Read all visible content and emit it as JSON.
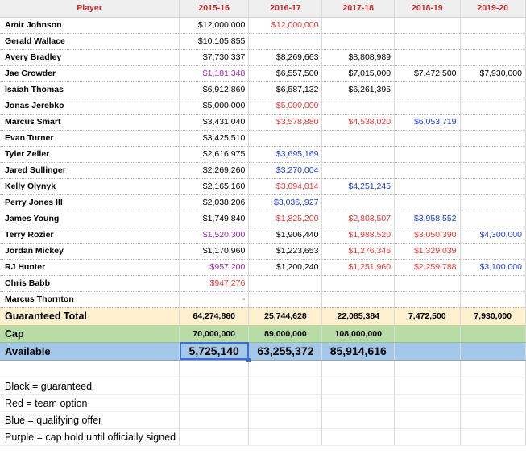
{
  "headers": [
    "Player",
    "2015-16",
    "2016-17",
    "2017-18",
    "2018-19",
    "2019-20"
  ],
  "players": [
    {
      "name": "Amir Johnson",
      "cells": [
        {
          "v": "$12,000,000",
          "c": "black"
        },
        {
          "v": "$12,000,000",
          "c": "red"
        },
        {
          "v": "",
          "c": "black"
        },
        {
          "v": "",
          "c": "black"
        },
        {
          "v": "",
          "c": "black"
        }
      ]
    },
    {
      "name": "Gerald Wallace",
      "cells": [
        {
          "v": "$10,105,855",
          "c": "black"
        },
        {
          "v": "",
          "c": "black"
        },
        {
          "v": "",
          "c": "black"
        },
        {
          "v": "",
          "c": "black"
        },
        {
          "v": "",
          "c": "black"
        }
      ]
    },
    {
      "name": "Avery Bradley",
      "cells": [
        {
          "v": "$7,730,337",
          "c": "black"
        },
        {
          "v": "$8,269,663",
          "c": "black"
        },
        {
          "v": "$8,808,989",
          "c": "black"
        },
        {
          "v": "",
          "c": "black"
        },
        {
          "v": "",
          "c": "black"
        }
      ]
    },
    {
      "name": "Jae Crowder",
      "cells": [
        {
          "v": "$1,181,348",
          "c": "purple"
        },
        {
          "v": "$6,557,500",
          "c": "black"
        },
        {
          "v": "$7,015,000",
          "c": "black"
        },
        {
          "v": "$7,472,500",
          "c": "black"
        },
        {
          "v": "$7,930,000",
          "c": "black"
        }
      ]
    },
    {
      "name": "Isaiah Thomas",
      "cells": [
        {
          "v": "$6,912,869",
          "c": "black"
        },
        {
          "v": "$6,587,132",
          "c": "black"
        },
        {
          "v": "$6,261,395",
          "c": "black"
        },
        {
          "v": "",
          "c": "black"
        },
        {
          "v": "",
          "c": "black"
        }
      ]
    },
    {
      "name": "Jonas Jerebko",
      "cells": [
        {
          "v": "$5,000,000",
          "c": "black"
        },
        {
          "v": "$5,000,000",
          "c": "red"
        },
        {
          "v": "",
          "c": "black"
        },
        {
          "v": "",
          "c": "black"
        },
        {
          "v": "",
          "c": "black"
        }
      ]
    },
    {
      "name": "Marcus Smart",
      "cells": [
        {
          "v": "$3,431,040",
          "c": "black"
        },
        {
          "v": "$3,578,880",
          "c": "red"
        },
        {
          "v": "$4,538,020",
          "c": "red"
        },
        {
          "v": "$6,053,719",
          "c": "blue"
        },
        {
          "v": "",
          "c": "black"
        }
      ]
    },
    {
      "name": "Evan Turner",
      "cells": [
        {
          "v": "$3,425,510",
          "c": "black"
        },
        {
          "v": "",
          "c": "black"
        },
        {
          "v": "",
          "c": "black"
        },
        {
          "v": "",
          "c": "black"
        },
        {
          "v": "",
          "c": "black"
        }
      ]
    },
    {
      "name": "Tyler Zeller",
      "cells": [
        {
          "v": "$2,616,975",
          "c": "black"
        },
        {
          "v": "$3,695,169",
          "c": "blue"
        },
        {
          "v": "",
          "c": "black"
        },
        {
          "v": "",
          "c": "black"
        },
        {
          "v": "",
          "c": "black"
        }
      ]
    },
    {
      "name": "Jared Sullinger",
      "cells": [
        {
          "v": "$2,269,260",
          "c": "black"
        },
        {
          "v": "$3,270,004",
          "c": "blue"
        },
        {
          "v": "",
          "c": "black"
        },
        {
          "v": "",
          "c": "black"
        },
        {
          "v": "",
          "c": "black"
        }
      ]
    },
    {
      "name": "Kelly Olynyk",
      "cells": [
        {
          "v": "$2,165,160",
          "c": "black"
        },
        {
          "v": "$3,094,014",
          "c": "red"
        },
        {
          "v": "$4,251,245",
          "c": "blue"
        },
        {
          "v": "",
          "c": "black"
        },
        {
          "v": "",
          "c": "black"
        }
      ]
    },
    {
      "name": "Perry Jones III",
      "cells": [
        {
          "v": "$2,038,206",
          "c": "black"
        },
        {
          "v": "$3,036,,927",
          "c": "blue"
        },
        {
          "v": "",
          "c": "black"
        },
        {
          "v": "",
          "c": "black"
        },
        {
          "v": "",
          "c": "black"
        }
      ]
    },
    {
      "name": "James Young",
      "cells": [
        {
          "v": "$1,749,840",
          "c": "black"
        },
        {
          "v": "$1,825,200",
          "c": "red"
        },
        {
          "v": "$2,803,507",
          "c": "red"
        },
        {
          "v": "$3,958,552",
          "c": "blue"
        },
        {
          "v": "",
          "c": "black"
        }
      ]
    },
    {
      "name": "Terry Rozier",
      "cells": [
        {
          "v": "$1,520,300",
          "c": "purple"
        },
        {
          "v": "$1,906,440",
          "c": "black"
        },
        {
          "v": "$1,988,520",
          "c": "red"
        },
        {
          "v": "$3,050,390",
          "c": "red"
        },
        {
          "v": "$4,300,000",
          "c": "blue"
        }
      ]
    },
    {
      "name": "Jordan Mickey",
      "cells": [
        {
          "v": "$1,170,960",
          "c": "black"
        },
        {
          "v": "$1,223,653",
          "c": "black"
        },
        {
          "v": "$1,276,346",
          "c": "red"
        },
        {
          "v": "$1,329,039",
          "c": "red"
        },
        {
          "v": "",
          "c": "black"
        }
      ]
    },
    {
      "name": "RJ Hunter",
      "cells": [
        {
          "v": "$957,200",
          "c": "purple"
        },
        {
          "v": "$1,200,240",
          "c": "black"
        },
        {
          "v": "$1,251,960",
          "c": "red"
        },
        {
          "v": "$2,259,788",
          "c": "red"
        },
        {
          "v": "$3,100,000",
          "c": "blue"
        }
      ]
    },
    {
      "name": "Chris Babb",
      "cells": [
        {
          "v": "$947,276",
          "c": "red"
        },
        {
          "v": "",
          "c": "black"
        },
        {
          "v": "",
          "c": "black"
        },
        {
          "v": "",
          "c": "black"
        },
        {
          "v": "",
          "c": "black"
        }
      ]
    },
    {
      "name": "Marcus Thornton",
      "cells": [
        {
          "v": "-",
          "c": "red"
        },
        {
          "v": "",
          "c": "black"
        },
        {
          "v": "",
          "c": "black"
        },
        {
          "v": "",
          "c": "black"
        },
        {
          "v": "",
          "c": "black"
        }
      ]
    }
  ],
  "totals": {
    "guaranteed": {
      "label": "Guaranteed Total",
      "values": [
        "64,274,860",
        "25,744,628",
        "22,085,384",
        "7,472,500",
        "7,930,000"
      ]
    },
    "cap": {
      "label": "Cap",
      "values": [
        "70,000,000",
        "89,000,000",
        "108,000,000",
        "",
        ""
      ]
    },
    "available": {
      "label": "Available",
      "values": [
        "5,725,140",
        "63,255,372",
        "85,914,616",
        "",
        ""
      ]
    }
  },
  "legend": [
    "Black = guaranteed",
    "Red = team option",
    "Blue = qualifying offer",
    "Purple = cap hold until officially signed"
  ],
  "colors": {
    "black": "#000000",
    "red": "#e53935",
    "blue": "#1e3fd6",
    "purple": "#9c27b0"
  }
}
